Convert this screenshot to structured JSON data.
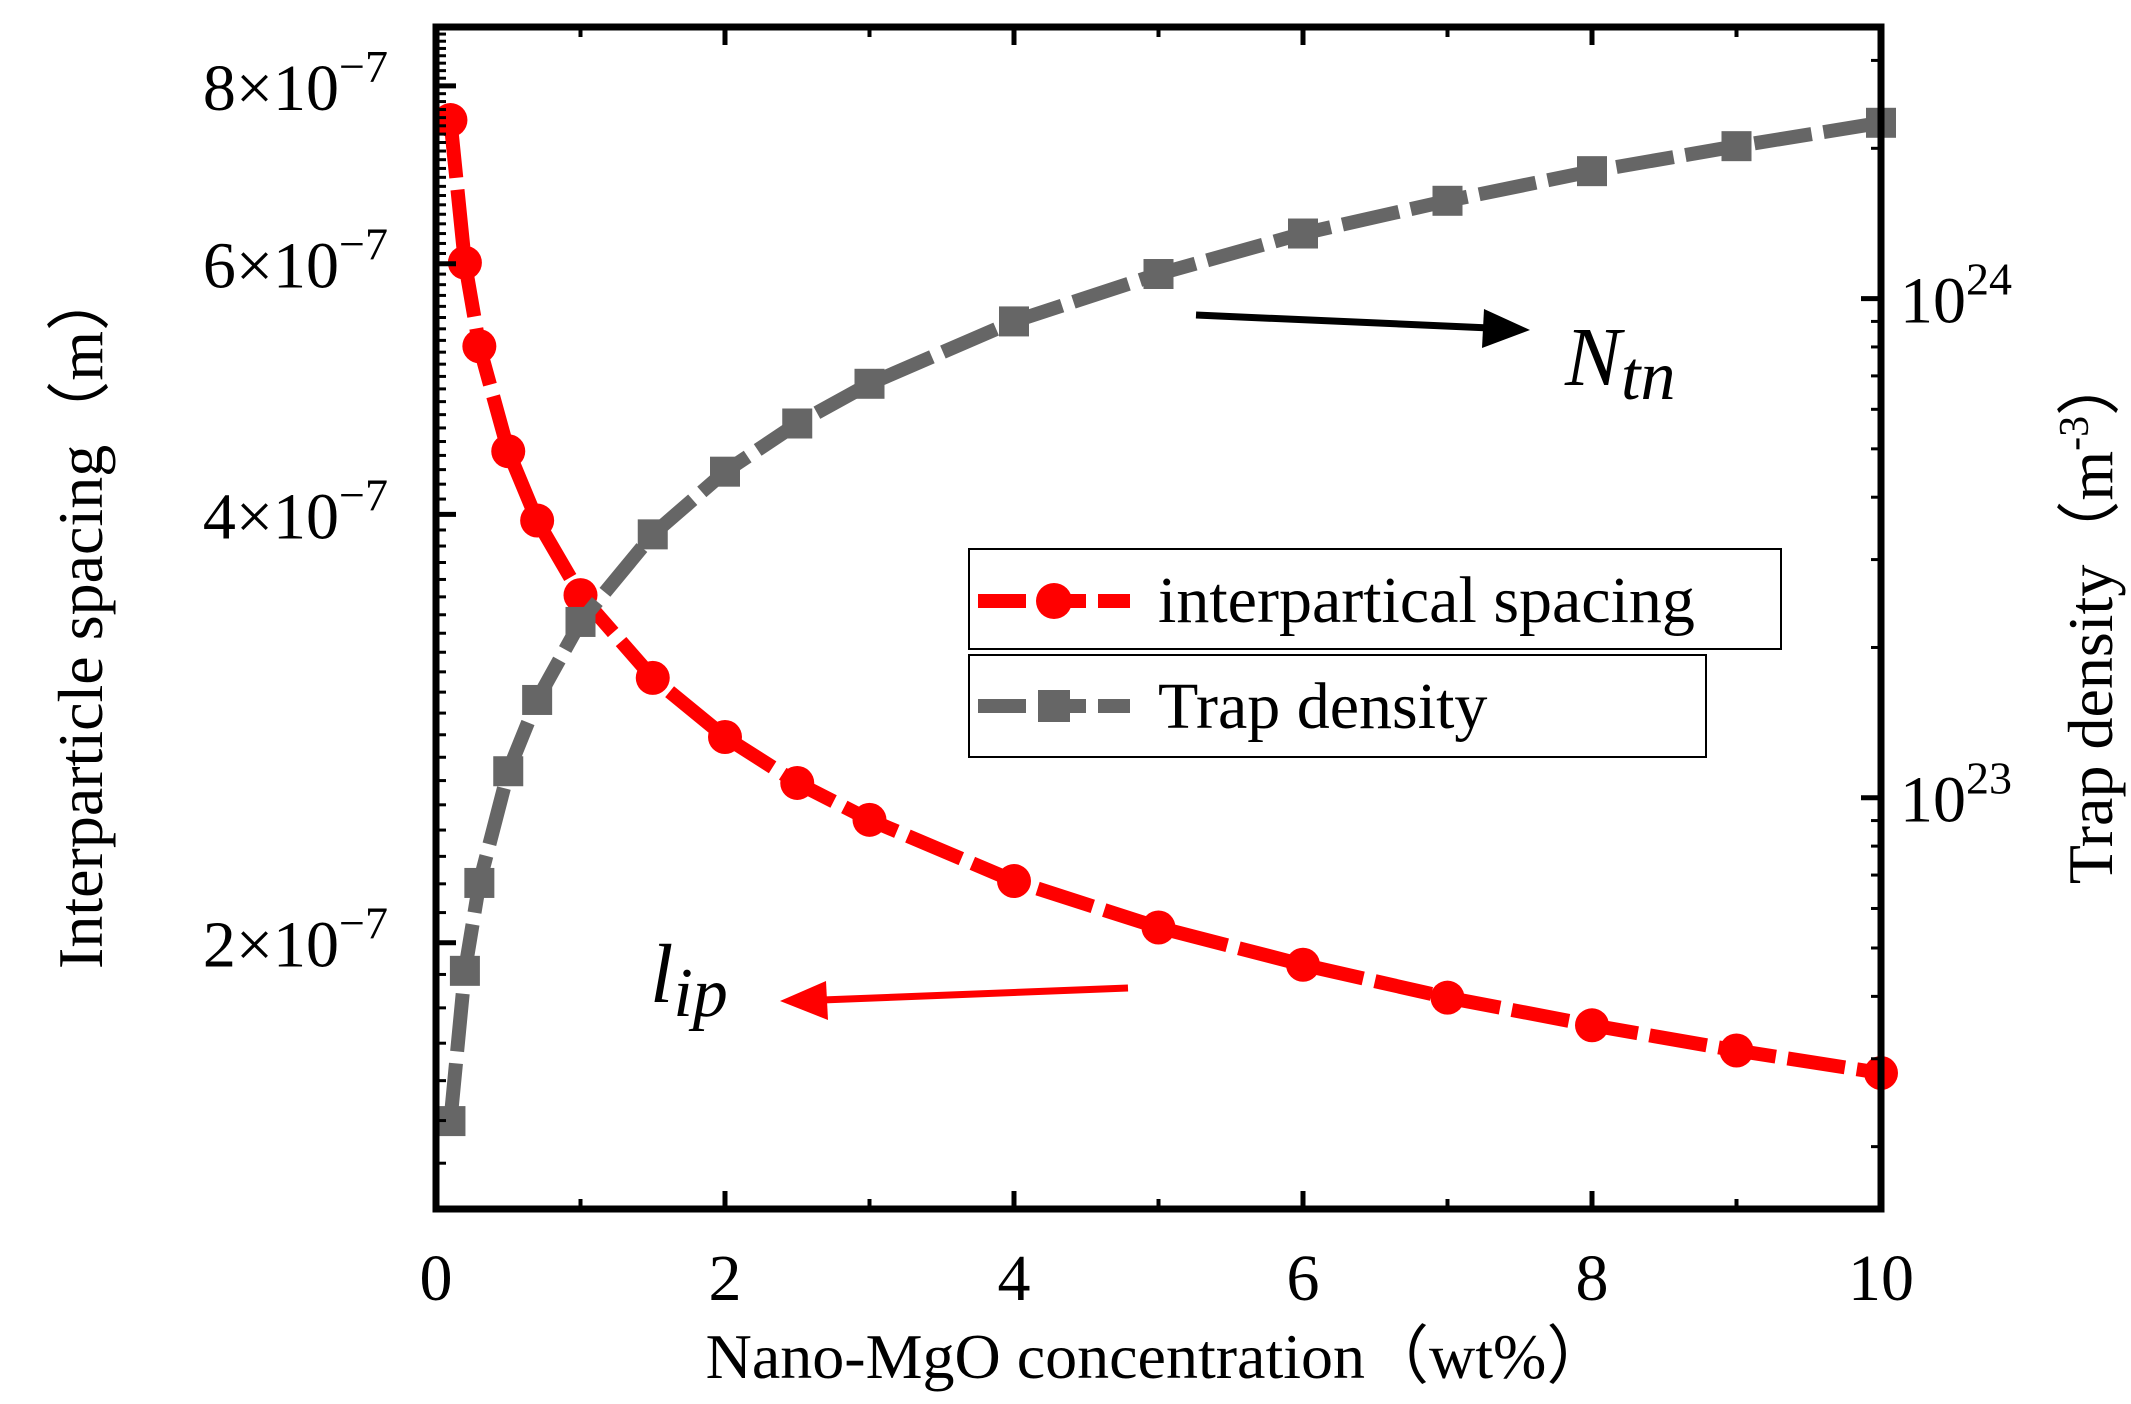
{
  "chart_data": {
    "type": "line",
    "x": [
      0.1,
      0.2,
      0.3,
      0.5,
      0.7,
      1,
      1.5,
      2,
      2.5,
      3,
      4,
      5,
      6,
      7,
      8,
      9,
      10
    ],
    "xlabel": "Nano-MgO concentration（wt%）",
    "xlim": [
      0,
      10
    ],
    "xticks": [
      0,
      2,
      4,
      6,
      8,
      10
    ],
    "xtick_labels": [
      "0",
      "2",
      "4",
      "6",
      "8",
      "10"
    ],
    "left_axis": {
      "label": "Interparticle spacing（m）",
      "scale": "log",
      "lim": [
        1.3e-07,
        8.8e-07
      ],
      "ticks": [
        2e-07,
        4e-07,
        6e-07,
        8e-07
      ],
      "tick_labels": [
        {
          "mantissa": "2",
          "times": "×",
          "base": "10",
          "exp": "−7"
        },
        {
          "mantissa": "4",
          "times": "×",
          "base": "10",
          "exp": "−7"
        },
        {
          "mantissa": "6",
          "times": "×",
          "base": "10",
          "exp": "−7"
        },
        {
          "mantissa": "8",
          "times": "×",
          "base": "10",
          "exp": "−7"
        }
      ]
    },
    "right_axis": {
      "label": "Trap density（m",
      "label_exp": "-3",
      "label_end": "）",
      "scale": "log",
      "lim": [
        1.5e+22,
        3.5e+24
      ],
      "ticks": [
        1e+23,
        1e+24
      ],
      "tick_labels": [
        {
          "base": "10",
          "exp": "23"
        },
        {
          "base": "10",
          "exp": "24"
        }
      ]
    },
    "series": [
      {
        "name": "interpartical spacing",
        "axis": "left",
        "marker": "circle",
        "color": "#ff0000",
        "y": [
          7.57e-07,
          6.01e-07,
          5.25e-07,
          4.43e-07,
          3.96e-07,
          3.51e-07,
          3.07e-07,
          2.79e-07,
          2.59e-07,
          2.44e-07,
          2.21e-07,
          2.05e-07,
          1.93e-07,
          1.83e-07,
          1.75e-07,
          1.68e-07,
          1.62e-07
        ]
      },
      {
        "name": "Trap density",
        "axis": "right",
        "marker": "square",
        "color": "#666666",
        "y": [
          2.25e+22,
          4.5e+22,
          6.75e+22,
          1.13e+23,
          1.57e+23,
          2.25e+23,
          3.37e+23,
          4.5e+23,
          5.62e+23,
          6.75e+23,
          9e+23,
          1.12e+24,
          1.35e+24,
          1.57e+24,
          1.8e+24,
          2.02e+24,
          2.25e+24
        ]
      }
    ],
    "legend": {
      "placement": "center-right",
      "entries": [
        "interpartical spacing",
        "Trap density"
      ]
    },
    "annotations": [
      {
        "main": "N",
        "sub": "tn",
        "arrow_to": "right axis",
        "color": "#000000"
      },
      {
        "main": "l",
        "sub": "ip",
        "arrow_to": "left axis",
        "color": "#ff0000"
      }
    ],
    "grid": false
  }
}
